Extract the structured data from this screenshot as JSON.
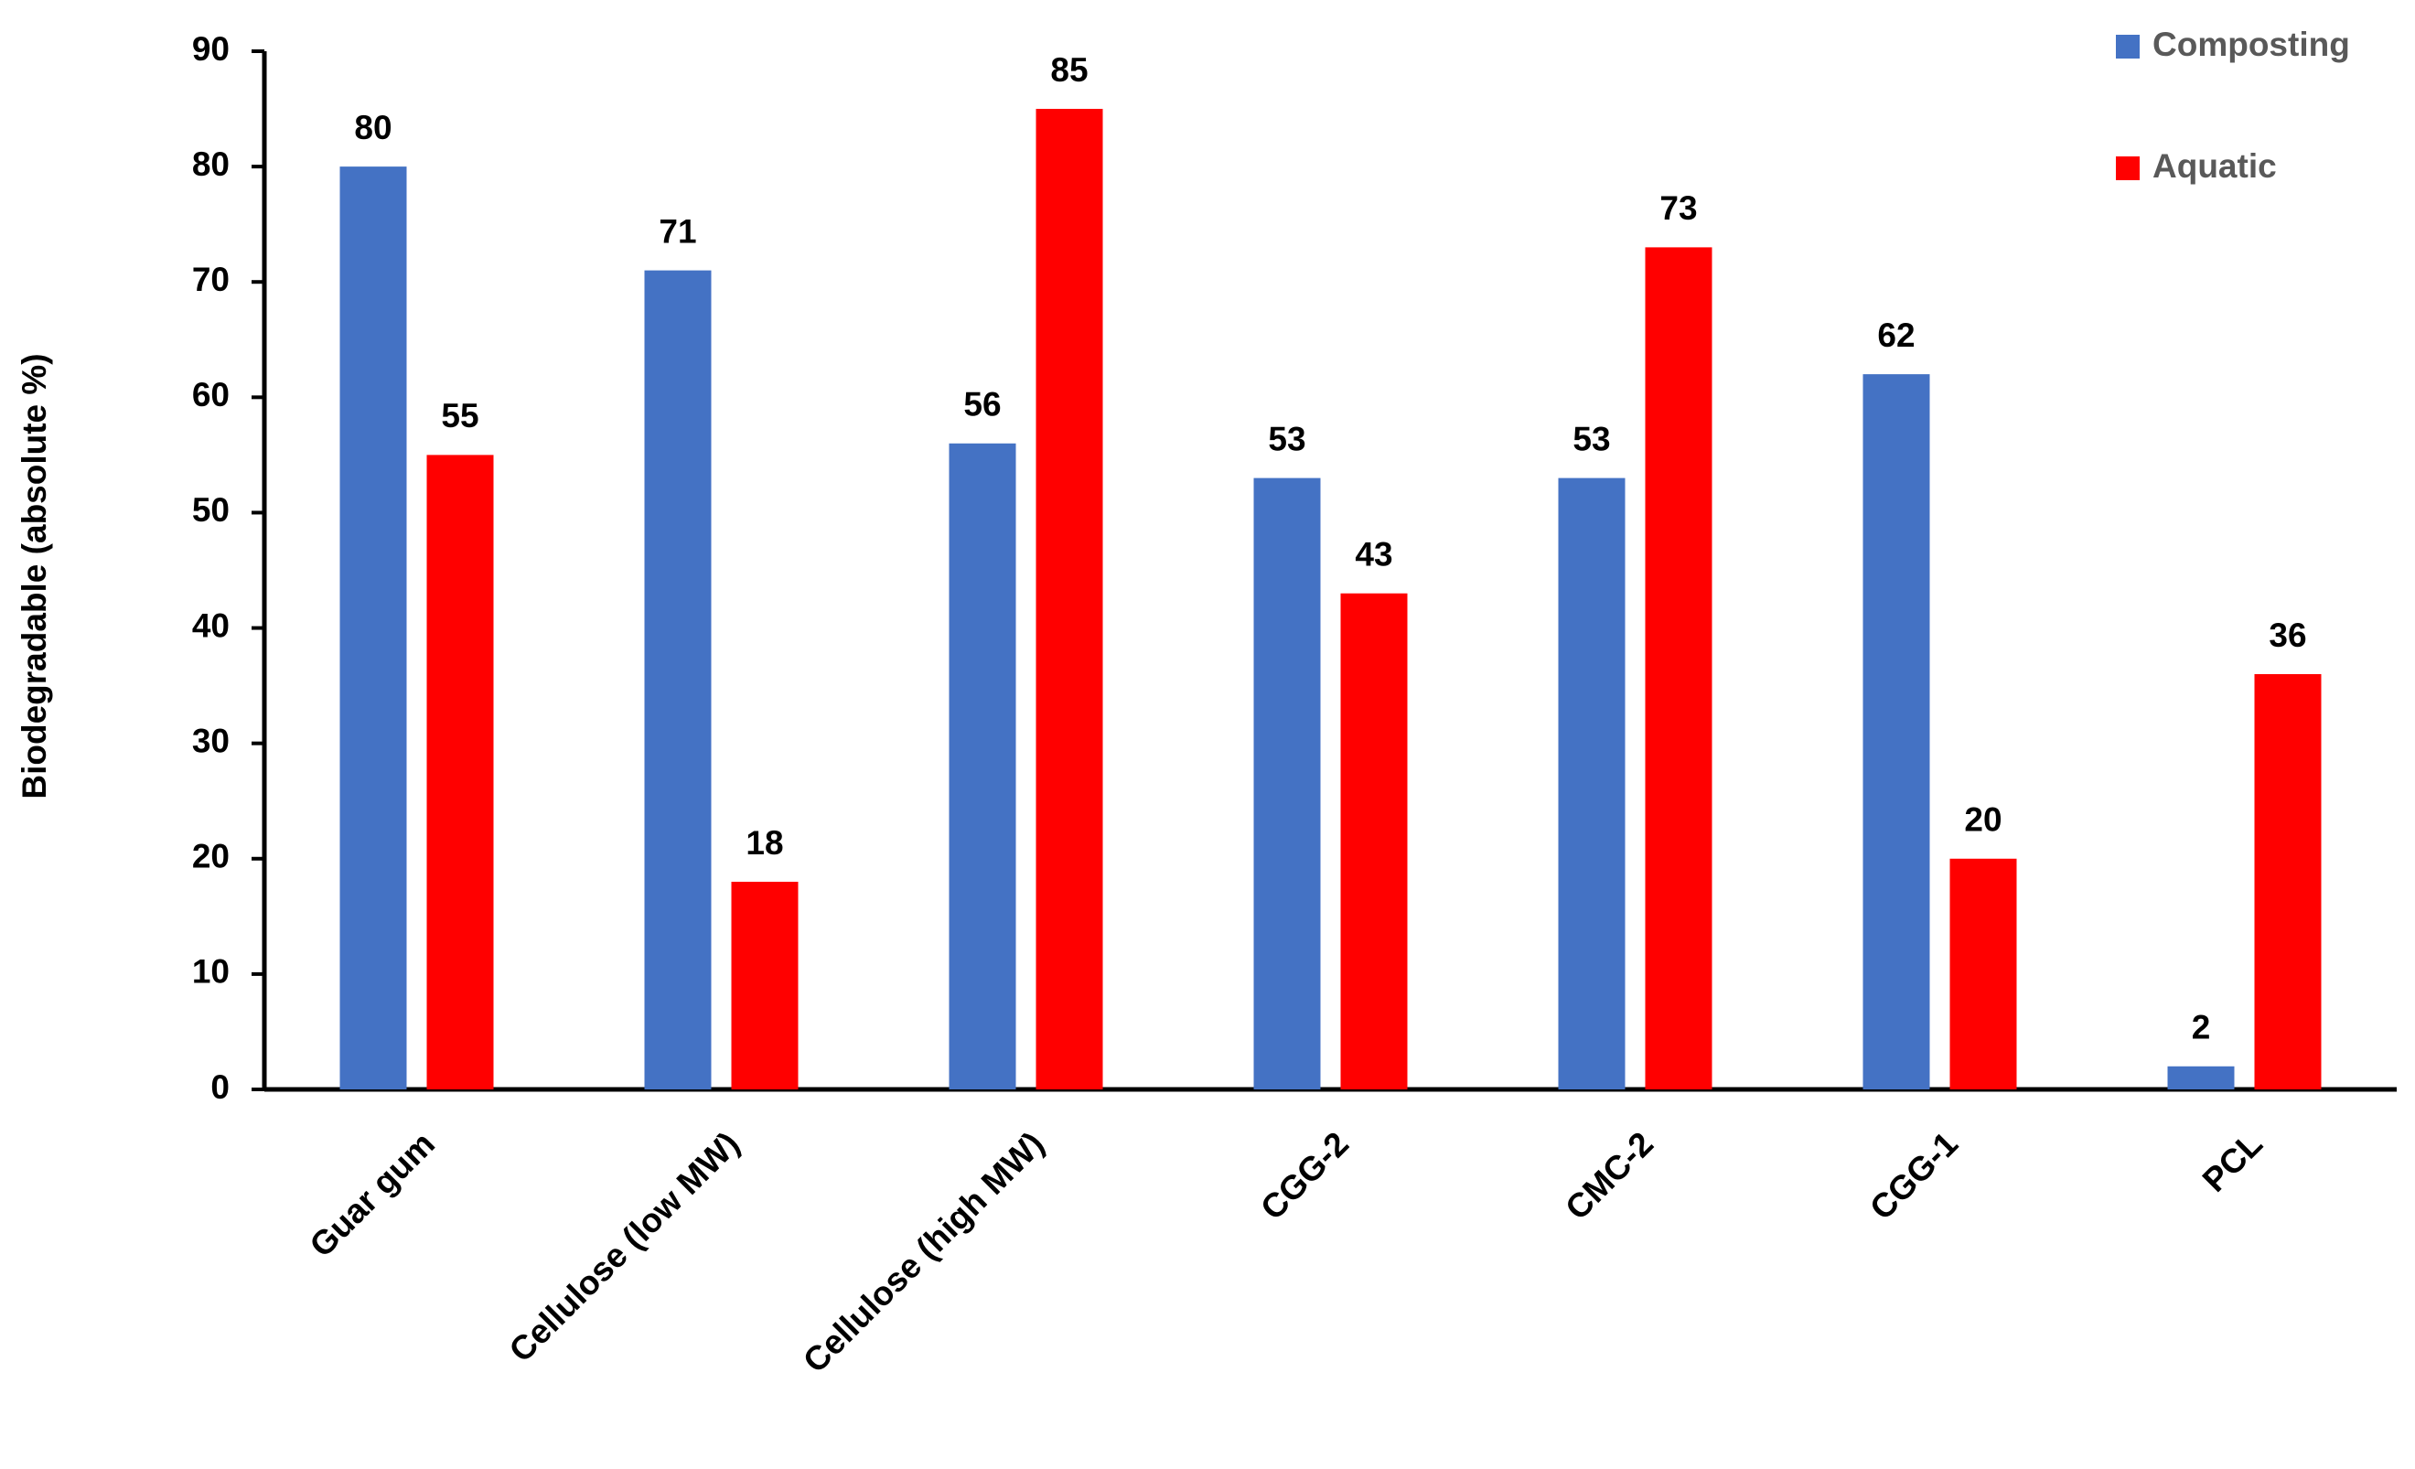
{
  "chart_data": {
    "type": "bar",
    "y_label": "Biodegradable (absolute %)",
    "categories": [
      "Guar gum",
      "Cellulose (low MW)",
      "Cellulose (high MW)",
      "CGG-2",
      "CMC-2",
      "CGG-1",
      "PCL"
    ],
    "series": [
      {
        "name": "Composting",
        "color": "#4472c4",
        "values": [
          80,
          71,
          56,
          53,
          53,
          62,
          2
        ]
      },
      {
        "name": "Aquatic",
        "color": "#ff0000",
        "values": [
          55,
          18,
          85,
          43,
          73,
          20,
          36
        ]
      }
    ],
    "ylim": [
      0,
      90
    ],
    "yticks": [
      0,
      10,
      20,
      30,
      40,
      50,
      60,
      70,
      80,
      90
    ],
    "grid": false,
    "legend": "top-right"
  }
}
